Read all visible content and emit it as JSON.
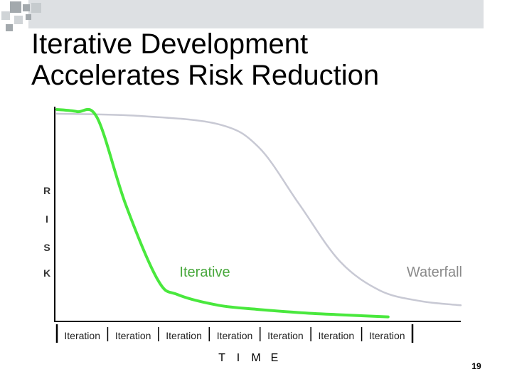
{
  "slide": {
    "title_line1": "Iterative Development",
    "title_line2": "Accelerates Risk Reduction",
    "page_number": "19",
    "accent_colors": {
      "square_dark": "#a3a9ad",
      "square_light": "#d0d4d7",
      "band": "#dde0e3"
    }
  },
  "chart_data": {
    "type": "line",
    "ylabel": "R I S K",
    "xlabel": "T I M E",
    "y_range": [
      0,
      1
    ],
    "x_range": [
      0,
      1
    ],
    "legend": "none",
    "grid": false,
    "iteration_labels": [
      "Iteration",
      "Iteration",
      "Iteration",
      "Iteration",
      "Iteration",
      "Iteration",
      "Iteration"
    ],
    "series": [
      {
        "name": "Iterative",
        "color": "#49e83d",
        "points": [
          [
            0.0,
            1.0
          ],
          [
            0.05,
            0.99
          ],
          [
            0.1,
            0.96
          ],
          [
            0.17,
            0.55
          ],
          [
            0.25,
            0.19
          ],
          [
            0.3,
            0.12
          ],
          [
            0.4,
            0.07
          ],
          [
            0.5,
            0.05
          ],
          [
            0.6,
            0.035
          ],
          [
            0.7,
            0.025
          ],
          [
            0.82,
            0.015
          ]
        ]
      },
      {
        "name": "Waterfall",
        "color": "#c8c9d4",
        "points": [
          [
            0.0,
            0.98
          ],
          [
            0.2,
            0.97
          ],
          [
            0.4,
            0.93
          ],
          [
            0.5,
            0.82
          ],
          [
            0.6,
            0.55
          ],
          [
            0.7,
            0.28
          ],
          [
            0.8,
            0.14
          ],
          [
            0.9,
            0.09
          ],
          [
            1.0,
            0.07
          ]
        ]
      }
    ]
  }
}
